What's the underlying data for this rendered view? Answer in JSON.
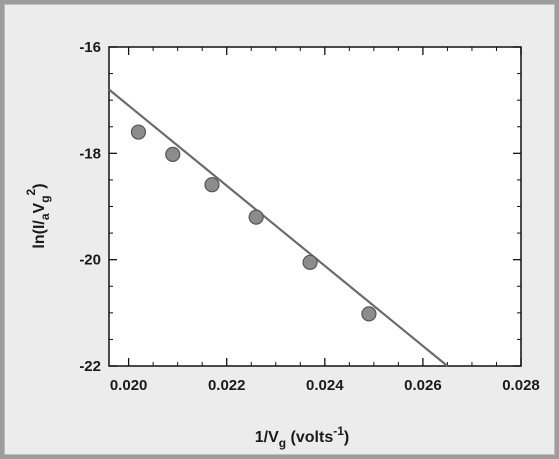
{
  "chart_data": {
    "type": "scatter",
    "title": "",
    "xlabel": {
      "base": "1/V",
      "sub": "g",
      "rest": " (volts",
      "sup": "-1",
      "close": ")"
    },
    "ylabel": {
      "a": "ln(I/",
      "a_sub": "a",
      "b": "V",
      "b_sub": "g",
      "sup": "2",
      "close": ")"
    },
    "xlim": [
      0.0196,
      0.028
    ],
    "ylim": [
      -22,
      -16
    ],
    "xticks": [
      0.02,
      0.022,
      0.024,
      0.026,
      0.028
    ],
    "xtick_labels": [
      "0.020",
      "0.022",
      "0.024",
      "0.026",
      "0.028"
    ],
    "yticks": [
      -22,
      -20,
      -18,
      -16
    ],
    "ytick_labels": [
      "-22",
      "-20",
      "-18",
      "-16"
    ],
    "series": [
      {
        "kind": "points",
        "x": [
          0.0202,
          0.0209,
          0.0217,
          0.0226,
          0.0237,
          0.0249
        ],
        "y": [
          -17.6,
          -18.02,
          -18.59,
          -19.2,
          -20.05,
          -21.02
        ]
      },
      {
        "kind": "fit-line",
        "x": [
          0.0196,
          0.0265
        ],
        "y": [
          -16.8,
          -22.0
        ]
      }
    ],
    "colors": {
      "marker": "#8c8c8c",
      "line": "#6b6b6b",
      "axes": "#111111"
    },
    "grid": false,
    "legend": "none"
  }
}
